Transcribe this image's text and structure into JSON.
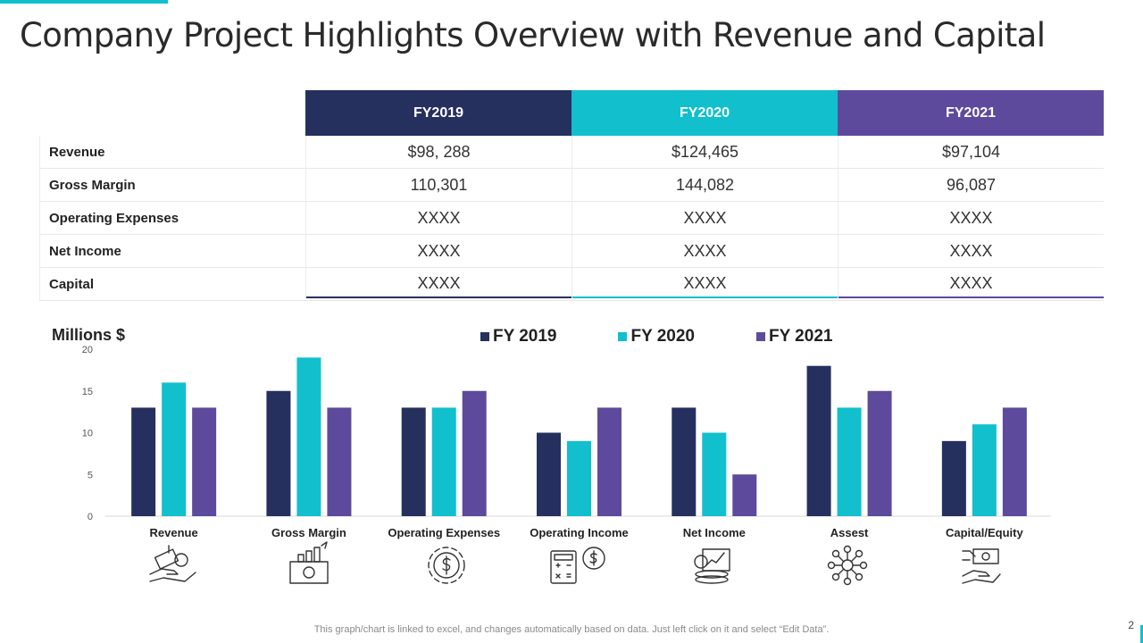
{
  "title": "Company Project Highlights Overview with Revenue and Capital",
  "colors": {
    "fy2019": "#26305f",
    "fy2020": "#12bfcc",
    "fy2021": "#5e4a9c",
    "accent": "#12bfcc"
  },
  "table": {
    "columns": [
      "FY2019",
      "FY2020",
      "FY2021"
    ],
    "rows": [
      {
        "label": "Revenue",
        "values": [
          "$98, 288",
          "$124,465",
          "$97,104"
        ]
      },
      {
        "label": "Gross Margin",
        "values": [
          "110,301",
          "144,082",
          "96,087"
        ]
      },
      {
        "label": "Operating Expenses",
        "values": [
          "XXXX",
          "XXXX",
          "XXXX"
        ]
      },
      {
        "label": "Net Income",
        "values": [
          "XXXX",
          "XXXX",
          "XXXX"
        ]
      },
      {
        "label": "Capital",
        "values": [
          "XXXX",
          "XXXX",
          "XXXX"
        ]
      }
    ]
  },
  "chart_data": {
    "type": "bar",
    "ylabel": "Millions $",
    "ylim": [
      0,
      20
    ],
    "yticks": [
      0,
      5,
      10,
      15,
      20
    ],
    "grid": false,
    "legend_position": "top",
    "categories": [
      "Revenue",
      "Gross Margin",
      "Operating Expenses",
      "Operating Income",
      "Net Income",
      "Assest",
      "Capital/Equity"
    ],
    "series": [
      {
        "name": "FY 2019",
        "values": [
          13,
          15,
          13,
          10,
          13,
          18,
          9
        ]
      },
      {
        "name": "FY 2020",
        "values": [
          16,
          19,
          13,
          9,
          10,
          13,
          11
        ]
      },
      {
        "name": "FY 2021",
        "values": [
          13,
          13,
          15,
          13,
          5,
          15,
          13
        ]
      }
    ],
    "category_icons": [
      "hand-money-icon",
      "money-growth-icon",
      "dollar-gear-icon",
      "calculator-dollar-icon",
      "income-chart-coins-icon",
      "network-hub-icon",
      "hand-cash-icon"
    ]
  },
  "footer": {
    "note": "This graph/chart is linked to excel, and changes automatically based on data. Just left click on it and select “Edit Data”.",
    "page_number": "2"
  }
}
